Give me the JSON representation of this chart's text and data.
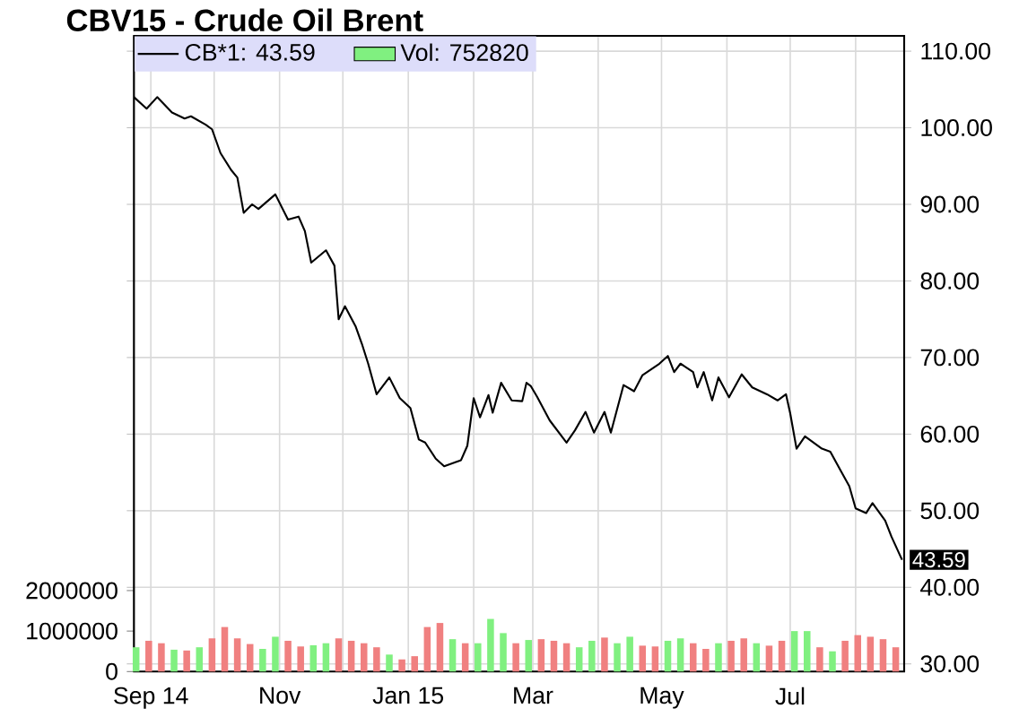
{
  "chart_data": {
    "type": "line",
    "title": "CBV15 - Crude Oil Brent",
    "series": [
      {
        "name": "CB*1: 43.59",
        "color": "#000000",
        "x": [
          "2014-08-24",
          "2014-08-30",
          "2014-09-04",
          "2014-09-11",
          "2014-09-17",
          "2014-09-20",
          "2014-09-27",
          "2014-09-30",
          "2014-10-04",
          "2014-10-09",
          "2014-10-12",
          "2014-10-15",
          "2014-10-19",
          "2014-10-22",
          "2014-10-30",
          "2014-11-05",
          "2014-11-10",
          "2014-11-13",
          "2014-11-16",
          "2014-11-23",
          "2014-11-27",
          "2014-11-29",
          "2014-12-02",
          "2014-12-07",
          "2014-12-10",
          "2014-12-13",
          "2014-12-17",
          "2014-12-23",
          "2014-12-28",
          "2015-01-02",
          "2015-01-06",
          "2015-01-09",
          "2015-01-14",
          "2015-01-18",
          "2015-01-26",
          "2015-01-29",
          "2015-02-01",
          "2015-02-04",
          "2015-02-08",
          "2015-02-10",
          "2015-02-14",
          "2015-02-19",
          "2015-02-24",
          "2015-02-26",
          "2015-02-28",
          "2015-03-03",
          "2015-03-09",
          "2015-03-17",
          "2015-03-21",
          "2015-03-26",
          "2015-03-30",
          "2015-04-04",
          "2015-04-07",
          "2015-04-13",
          "2015-04-18",
          "2015-04-22",
          "2015-04-30",
          "2015-05-04",
          "2015-05-07",
          "2015-05-10",
          "2015-05-16",
          "2015-05-18",
          "2015-05-21",
          "2015-05-25",
          "2015-05-28",
          "2015-06-02",
          "2015-06-08",
          "2015-06-13",
          "2015-06-20",
          "2015-06-25",
          "2015-06-29",
          "2015-07-01",
          "2015-07-04",
          "2015-07-08",
          "2015-07-16",
          "2015-07-20",
          "2015-07-25",
          "2015-07-29",
          "2015-08-01",
          "2015-08-06",
          "2015-08-09",
          "2015-08-15",
          "2015-08-18",
          "2015-08-23"
        ],
        "values": [
          104,
          102.5,
          104,
          102,
          101.2,
          101.5,
          100.4,
          99.8,
          96.7,
          94.5,
          93.5,
          88.9,
          90,
          89.4,
          91.3,
          88,
          88.4,
          86.5,
          82.4,
          84,
          82,
          75,
          76.7,
          74.1,
          71.8,
          69.2,
          65.2,
          67.4,
          64.7,
          63.4,
          59.3,
          58.9,
          56.8,
          55.8,
          56.6,
          58.5,
          64.7,
          62.2,
          65.1,
          62.8,
          66.7,
          64.4,
          64.3,
          66.7,
          66.3,
          64.9,
          61.8,
          58.9,
          60.5,
          62.9,
          60.2,
          62.9,
          60.2,
          66.4,
          65.6,
          67.7,
          69.2,
          70.2,
          68.1,
          69.2,
          68.1,
          66.1,
          68.1,
          64.4,
          67.4,
          64.8,
          67.8,
          66.1,
          65.2,
          64.4,
          65.2,
          62.7,
          58.1,
          59.7,
          58.1,
          57.7,
          55.2,
          53.2,
          50.3,
          49.7,
          51,
          48.7,
          46.6,
          43.59
        ]
      },
      {
        "name": "Vol: 752820",
        "type": "bar",
        "axis": "y2",
        "color": "#80f080",
        "x": [
          "2014-08-25",
          "2014-08-31",
          "2014-09-06",
          "2014-09-12",
          "2014-09-18",
          "2014-09-24",
          "2014-09-30",
          "2014-10-06",
          "2014-10-12",
          "2014-10-18",
          "2014-10-24",
          "2014-10-30",
          "2014-11-05",
          "2014-11-11",
          "2014-11-17",
          "2014-11-23",
          "2014-11-29",
          "2014-12-05",
          "2014-12-11",
          "2014-12-17",
          "2014-12-23",
          "2014-12-29",
          "2015-01-04",
          "2015-01-10",
          "2015-01-16",
          "2015-01-22",
          "2015-01-28",
          "2015-02-03",
          "2015-02-09",
          "2015-02-15",
          "2015-02-21",
          "2015-02-27",
          "2015-03-05",
          "2015-03-11",
          "2015-03-17",
          "2015-03-23",
          "2015-03-29",
          "2015-04-04",
          "2015-04-10",
          "2015-04-16",
          "2015-04-22",
          "2015-04-28",
          "2015-05-04",
          "2015-05-10",
          "2015-05-16",
          "2015-05-22",
          "2015-05-28",
          "2015-06-03",
          "2015-06-09",
          "2015-06-15",
          "2015-06-21",
          "2015-06-27",
          "2015-07-03",
          "2015-07-09",
          "2015-07-15",
          "2015-07-21",
          "2015-07-27",
          "2015-08-02",
          "2015-08-08",
          "2015-08-14",
          "2015-08-20"
        ],
        "values": [
          600000,
          760000,
          700000,
          540000,
          520000,
          600000,
          820000,
          1100000,
          820000,
          680000,
          560000,
          860000,
          760000,
          620000,
          650000,
          700000,
          820000,
          760000,
          700000,
          600000,
          420000,
          300000,
          380000,
          1100000,
          1200000,
          800000,
          700000,
          700000,
          1300000,
          950000,
          700000,
          780000,
          800000,
          760000,
          700000,
          600000,
          760000,
          840000,
          700000,
          860000,
          640000,
          620000,
          760000,
          820000,
          700000,
          560000,
          700000,
          760000,
          820000,
          700000,
          640000,
          760000,
          1000000,
          1000000,
          600000,
          500000,
          760000,
          900000,
          860000,
          800000,
          600000
        ],
        "colors": [
          "#80f080",
          "#f08080",
          "#f08080",
          "#80f080",
          "#f08080",
          "#80f080",
          "#f08080",
          "#f08080",
          "#f08080",
          "#f08080",
          "#80f080",
          "#80f080",
          "#f08080",
          "#f08080",
          "#80f080",
          "#80f080",
          "#f08080",
          "#f08080",
          "#f08080",
          "#f08080",
          "#80f080",
          "#f08080",
          "#f08080",
          "#f08080",
          "#f08080",
          "#80f080",
          "#f08080",
          "#80f080",
          "#80f080",
          "#80f080",
          "#f08080",
          "#80f080",
          "#f08080",
          "#f08080",
          "#f08080",
          "#80f080",
          "#80f080",
          "#f08080",
          "#80f080",
          "#80f080",
          "#f08080",
          "#f08080",
          "#80f080",
          "#80f080",
          "#f08080",
          "#f08080",
          "#80f080",
          "#f08080",
          "#f08080",
          "#80f080",
          "#f08080",
          "#f08080",
          "#80f080",
          "#80f080",
          "#f08080",
          "#80f080",
          "#f08080",
          "#f08080",
          "#f08080",
          "#f08080",
          "#f08080"
        ]
      }
    ],
    "xlim": [
      "2014-08-24",
      "2015-08-24"
    ],
    "xticks": [
      {
        "value": "2014-09-01",
        "label": "Sep 14"
      },
      {
        "value": "2014-10-01",
        "label": null
      },
      {
        "value": "2014-11-01",
        "label": "Nov"
      },
      {
        "value": "2014-12-01",
        "label": null
      },
      {
        "value": "2015-01-01",
        "label": "Jan 15"
      },
      {
        "value": "2015-02-01",
        "label": null
      },
      {
        "value": "2015-03-01",
        "label": "Mar"
      },
      {
        "value": "2015-04-01",
        "label": null
      },
      {
        "value": "2015-05-01",
        "label": "May"
      },
      {
        "value": "2015-06-01",
        "label": null
      },
      {
        "value": "2015-07-01",
        "label": "Jul"
      },
      {
        "value": "2015-08-01",
        "label": null
      }
    ],
    "ylim": [
      29,
      112
    ],
    "yticks": [
      {
        "value": 30,
        "label": "30.00"
      },
      {
        "value": 40,
        "label": "40.00"
      },
      {
        "value": 50,
        "label": "50.00"
      },
      {
        "value": 60,
        "label": "60.00"
      },
      {
        "value": 70,
        "label": "70.00"
      },
      {
        "value": 80,
        "label": "80.00"
      },
      {
        "value": 90,
        "label": "90.00"
      },
      {
        "value": 100,
        "label": "100.00"
      },
      {
        "value": 110,
        "label": "110.00"
      }
    ],
    "y2lim": [
      0,
      15700000
    ],
    "y2ticks": [
      0,
      1000000,
      2000000
    ],
    "grid": true,
    "legend": "top left",
    "annotations": [
      {
        "text": "43.59",
        "x": "2015-08-23",
        "y": 43.59
      }
    ]
  }
}
